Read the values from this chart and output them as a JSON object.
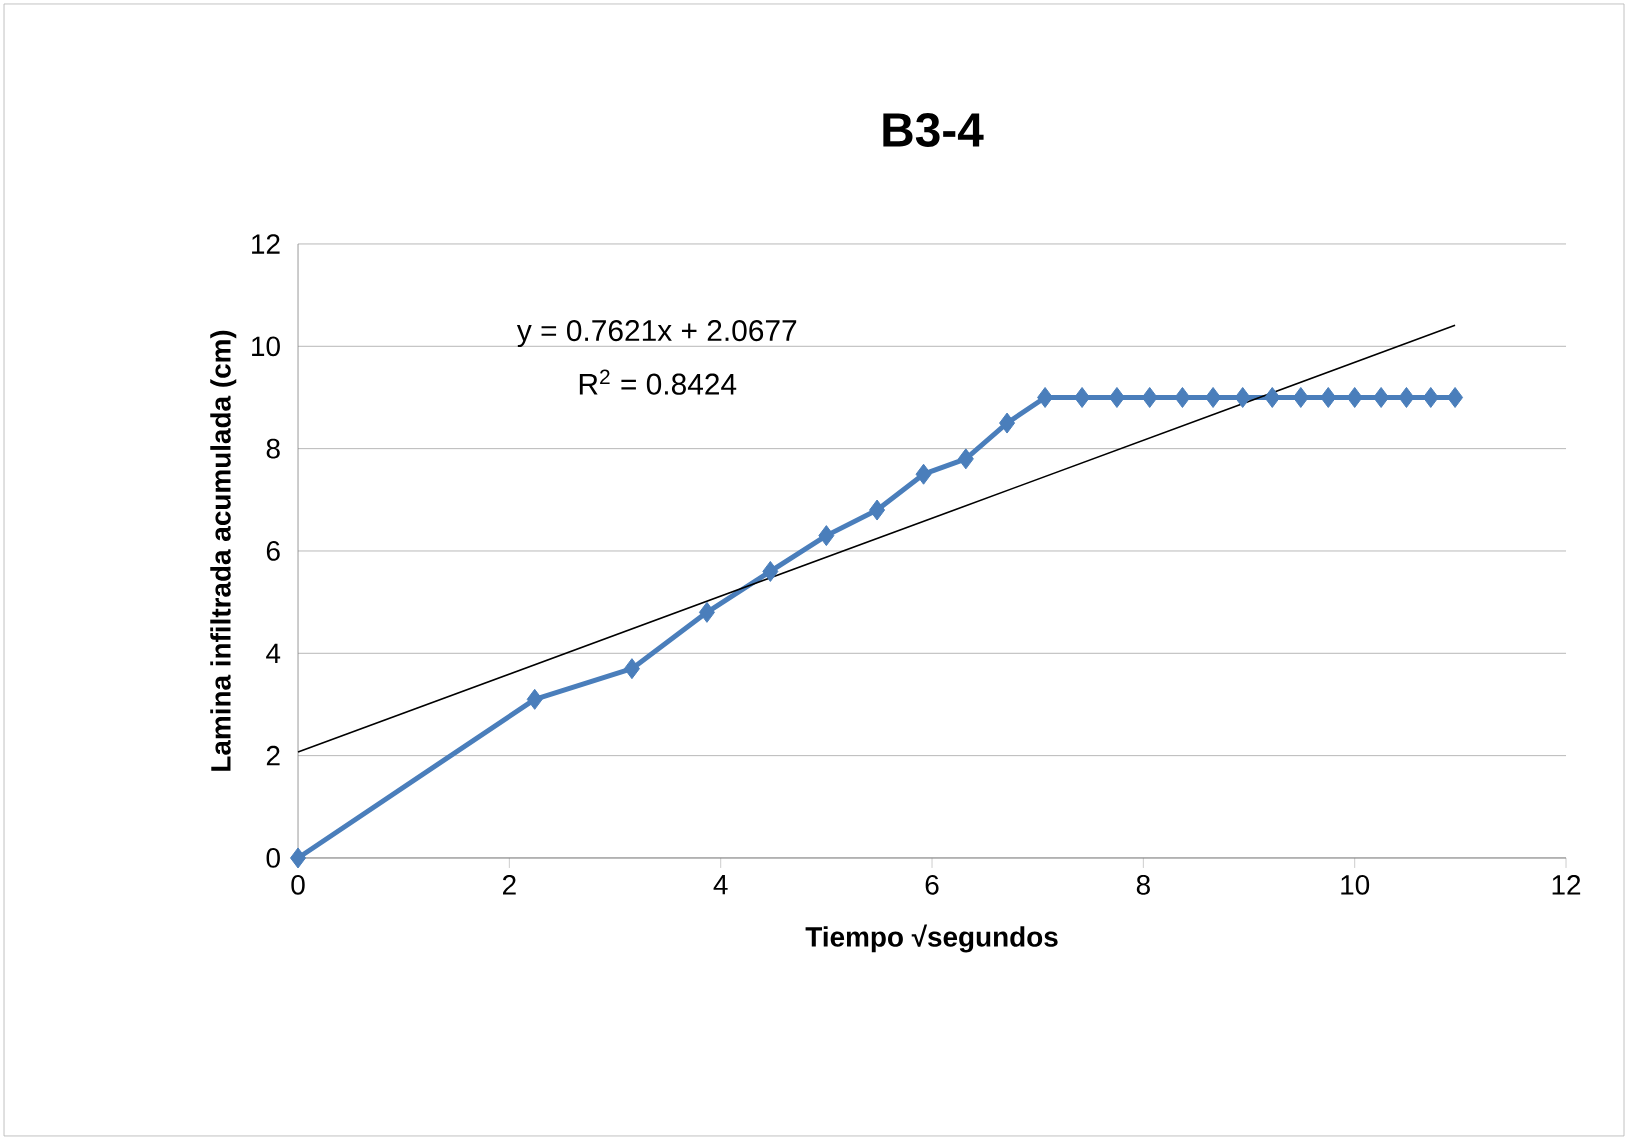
{
  "chart_data": {
    "type": "line",
    "title": "B3-4",
    "xlabel": "Tiempo √segundos",
    "ylabel": "Lamina infiltrada acumulada (cm)",
    "xlim": [
      0,
      12
    ],
    "xticks": [
      0,
      2,
      4,
      6,
      8,
      10,
      12
    ],
    "ylim": [
      0,
      12
    ],
    "yticks": [
      0,
      2,
      4,
      6,
      8,
      10,
      12
    ],
    "grid": "y",
    "annotations": [
      "y = 0.7621x + 2.0677",
      "R$^{2}$ = 0.8424"
    ],
    "series": [
      {
        "color": "#4a7ebb",
        "marker": "diamond",
        "x": [
          0,
          2.24,
          3.16,
          3.87,
          4.47,
          5,
          5.48,
          5.92,
          6.32,
          6.71,
          7.07,
          7.42,
          7.75,
          8.06,
          8.37,
          8.66,
          8.94,
          9.22,
          9.49,
          9.75,
          10,
          10.25,
          10.49,
          10.72,
          10.95
        ],
        "values": [
          0,
          3.1,
          3.7,
          4.8,
          5.6,
          6.3,
          6.8,
          7.5,
          7.8,
          8.5,
          9,
          9,
          9,
          9,
          9,
          9,
          9,
          9,
          9,
          9,
          9,
          9,
          9,
          9,
          9
        ]
      },
      {
        "color": "#000000",
        "marker": "none",
        "x": [
          0,
          10.95
        ],
        "values": [
          2.07,
          10.41
        ]
      }
    ]
  }
}
